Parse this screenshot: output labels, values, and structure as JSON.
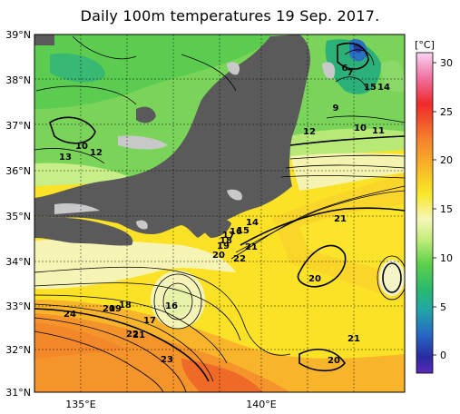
{
  "title": "Daily 100m temperatures 19 Sep. 2017.",
  "lat_labels": [
    "39°N",
    "38°N",
    "37°N",
    "36°N",
    "35°N",
    "34°N",
    "33°N",
    "32°N",
    "31°N"
  ],
  "lon_labels": [
    "135°E",
    "140°E"
  ],
  "colorbar": {
    "unit": "[°C]",
    "ticks": [
      "30",
      "25",
      "20",
      "15",
      "10",
      "5",
      "0"
    ],
    "colors": [
      "#f6c8f0",
      "#ee3a7a",
      "#f26a30",
      "#f79a2a",
      "#fbc428",
      "#fbe626",
      "#f2f0a0",
      "#c8f07a",
      "#7ad65a",
      "#3cc040",
      "#34b07a",
      "#38a8a8",
      "#2c7cc4",
      "#2850b0",
      "#2a2a90",
      "#4a2ab0"
    ]
  },
  "contour_labels": [
    {
      "text": "6"
    },
    {
      "text": "7"
    },
    {
      "text": "15"
    },
    {
      "text": "14"
    },
    {
      "text": "9"
    },
    {
      "text": "10"
    },
    {
      "text": "11"
    },
    {
      "text": "12"
    },
    {
      "text": "10"
    },
    {
      "text": "12"
    },
    {
      "text": "13"
    },
    {
      "text": "21"
    },
    {
      "text": "14"
    },
    {
      "text": "15"
    },
    {
      "text": "16"
    },
    {
      "text": "17"
    },
    {
      "text": "18"
    },
    {
      "text": "19"
    },
    {
      "text": "20"
    },
    {
      "text": "21"
    },
    {
      "text": "22"
    },
    {
      "text": "20"
    },
    {
      "text": "16"
    },
    {
      "text": "17"
    },
    {
      "text": "18"
    },
    {
      "text": "19"
    },
    {
      "text": "20"
    },
    {
      "text": "24"
    },
    {
      "text": "22"
    },
    {
      "text": "21"
    },
    {
      "text": "23"
    },
    {
      "text": "21"
    },
    {
      "text": "20"
    }
  ]
}
